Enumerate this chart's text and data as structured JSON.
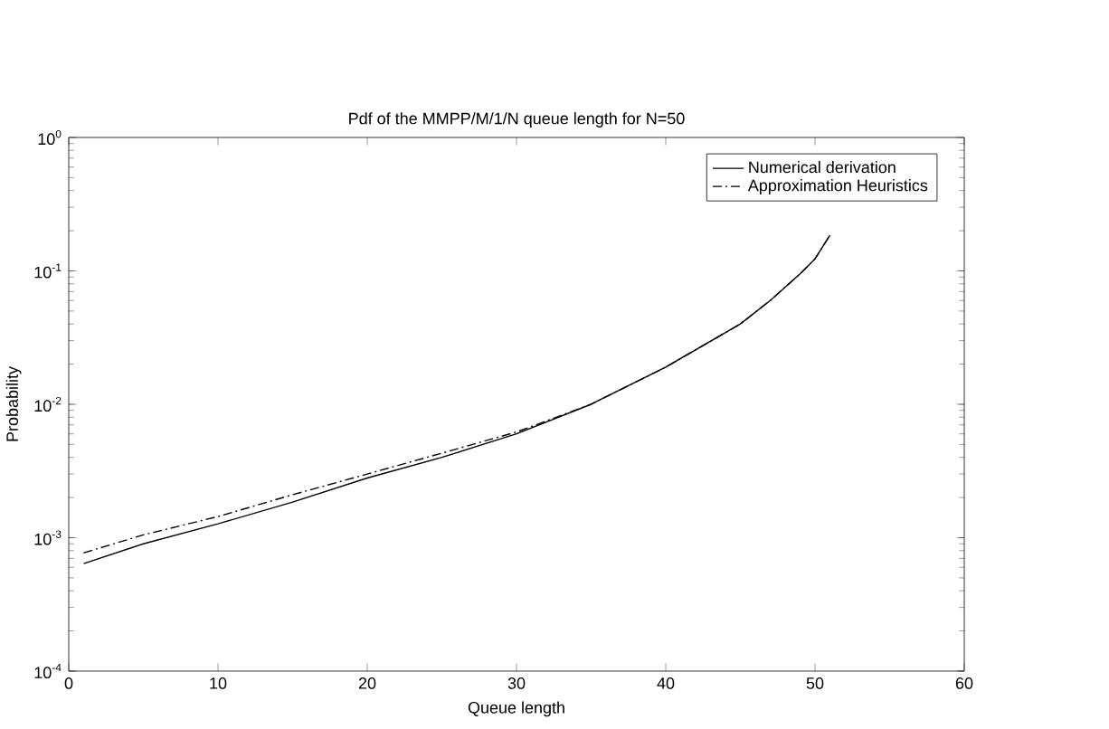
{
  "chart_data": {
    "type": "line",
    "title": "Pdf of the MMPP/M/1/N queue length for N=50",
    "xlabel": "Queue length",
    "ylabel": "Probability",
    "log": "y",
    "xlim": [
      0,
      60
    ],
    "xticks": [
      0,
      10,
      20,
      30,
      40,
      50,
      60
    ],
    "ylim": [
      0.0001,
      1
    ],
    "yticks": [
      {
        "value": 0.0001,
        "label": "10$^{-4}$"
      },
      {
        "value": 0.001,
        "label": "10$^{-3}$"
      },
      {
        "value": 0.01,
        "label": "10$^{-2}$"
      },
      {
        "value": 0.1,
        "label": "10$^{-1}$"
      },
      {
        "value": 1,
        "label": "10$^{0}$"
      }
    ],
    "legend": "top right",
    "grid": false,
    "series": [
      {
        "name": "Numerical derivation",
        "color": "#000000",
        "line_style": "solid",
        "x": [
          1,
          5,
          10,
          15,
          20,
          25,
          30,
          35,
          40,
          45,
          47,
          49,
          50,
          51
        ],
        "values": [
          0.00064,
          0.0009,
          0.00127,
          0.00185,
          0.0028,
          0.004,
          0.006,
          0.01,
          0.019,
          0.04,
          0.06,
          0.095,
          0.123,
          0.185
        ]
      },
      {
        "name": "Approximation Heuristics",
        "color": "#000000",
        "line_style": "dashdot",
        "x": [
          1,
          5,
          10,
          15,
          20,
          25,
          30,
          35,
          40,
          45,
          47,
          49,
          50,
          51
        ],
        "values": [
          0.00077,
          0.00105,
          0.00144,
          0.0021,
          0.003,
          0.0043,
          0.0062,
          0.01,
          0.019,
          0.04,
          0.06,
          0.095,
          0.123,
          0.185
        ]
      }
    ]
  }
}
